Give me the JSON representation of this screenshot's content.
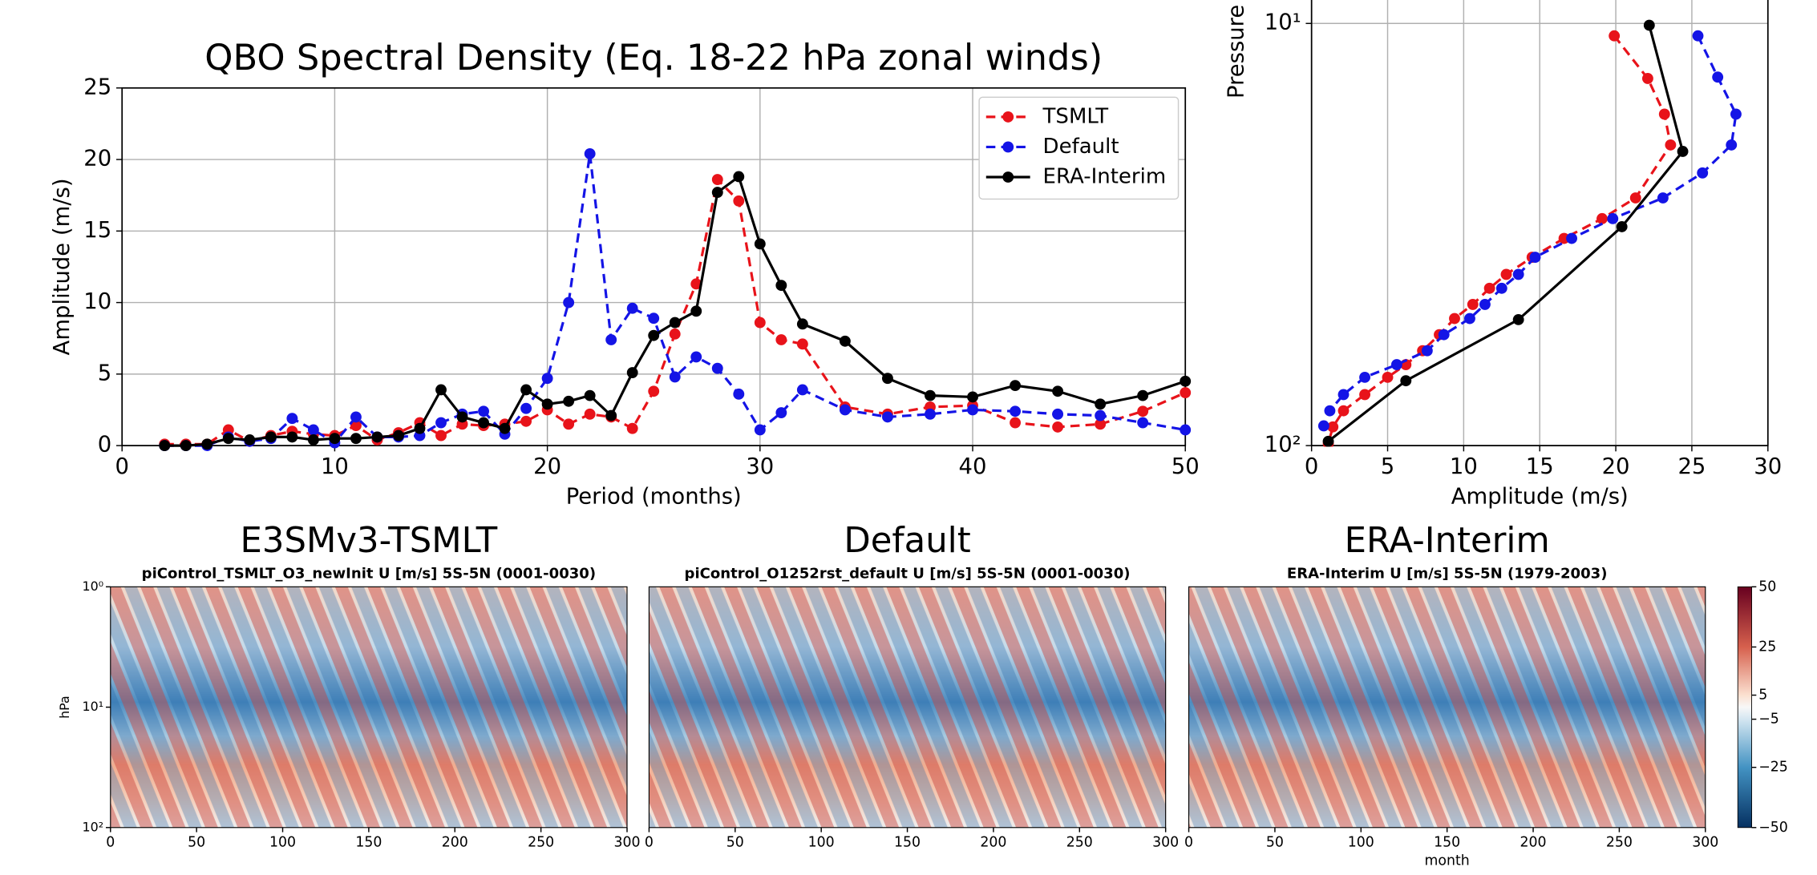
{
  "chart_data": [
    {
      "type": "line",
      "title": "QBO Spectral Density (Eq. 18-22 hPa zonal winds)",
      "xlabel": "Period (months)",
      "ylabel": "Amplitude (m/s)",
      "x": [
        2,
        3,
        4,
        5,
        6,
        7,
        8,
        9,
        10,
        11,
        12,
        13,
        14,
        15,
        16,
        17,
        18,
        19,
        20,
        21,
        22,
        23,
        24,
        25,
        26,
        27,
        28,
        29,
        30,
        31,
        32,
        34,
        36,
        38,
        40,
        42,
        44,
        46,
        48,
        50
      ],
      "series": [
        {
          "name": "TSMLT",
          "color": "#e8131a",
          "linestyle": "dashed",
          "values": [
            0.1,
            0.1,
            0.1,
            1.1,
            0.3,
            0.7,
            1.0,
            0.8,
            0.7,
            1.4,
            0.4,
            0.9,
            1.6,
            0.7,
            1.5,
            1.4,
            1.5,
            1.7,
            2.5,
            1.5,
            2.2,
            2.0,
            1.2,
            3.8,
            7.8,
            11.3,
            18.6,
            17.1,
            8.6,
            7.4,
            7.1,
            2.7,
            2.2,
            2.7,
            2.8,
            1.6,
            1.3,
            1.5,
            2.4,
            3.7
          ]
        },
        {
          "name": "Default",
          "color": "#1414e6",
          "linestyle": "dashed",
          "values": [
            0,
            0,
            0,
            0.6,
            0.3,
            0.5,
            1.9,
            1.1,
            0.2,
            2.0,
            0.6,
            0.6,
            0.7,
            1.6,
            2.2,
            2.4,
            0.8,
            2.6,
            4.7,
            10.0,
            20.4,
            7.4,
            9.6,
            8.9,
            4.8,
            6.2,
            5.4,
            3.6,
            1.1,
            2.3,
            3.9,
            2.5,
            2.0,
            2.2,
            2.5,
            2.4,
            2.2,
            2.1,
            1.6,
            1.1
          ]
        },
        {
          "name": "ERA-Interim",
          "color": "#000000",
          "linestyle": "solid",
          "values": [
            0,
            0,
            0.1,
            0.5,
            0.4,
            0.6,
            0.6,
            0.4,
            0.5,
            0.5,
            0.6,
            0.7,
            1.2,
            3.9,
            2.0,
            1.6,
            1.2,
            3.9,
            2.9,
            3.1,
            3.5,
            2.1,
            5.1,
            7.7,
            8.6,
            9.4,
            17.7,
            18.8,
            14.1,
            11.2,
            8.5,
            7.3,
            4.7,
            3.5,
            3.4,
            4.2,
            3.8,
            2.9,
            3.5,
            4.5
          ]
        }
      ],
      "xlim": [
        0,
        50
      ],
      "xticks": [
        0,
        10,
        20,
        30,
        40,
        50
      ],
      "ylim": [
        0,
        25
      ],
      "yticks": [
        0,
        5,
        10,
        15,
        20,
        25
      ],
      "grid": true,
      "legend": "upper right"
    },
    {
      "type": "profile",
      "xlabel": "Amplitude (m/s)",
      "ylabel": "Pressure",
      "log_y": true,
      "series": [
        {
          "color": "#e8131a",
          "linestyle": "dashed",
          "x": [
            19.9,
            22.1,
            23.2,
            23.6,
            21.3,
            19.1,
            16.6,
            14.5,
            12.8,
            11.7,
            10.6,
            9.4,
            8.4,
            7.3,
            6.2,
            5.0,
            3.5,
            2.1,
            1.4,
            1.1
          ],
          "values": [
            10.7,
            13.5,
            16.4,
            19.4,
            25.9,
            29.0,
            32.3,
            35.8,
            39.3,
            42.4,
            46.3,
            50.0,
            54.6,
            59.6,
            64.3,
            68.9,
            75.7,
            82.7,
            90.3,
            98.9
          ]
        },
        {
          "color": "#1414e6",
          "linestyle": "dashed",
          "x": [
            25.4,
            26.7,
            27.9,
            27.6,
            25.7,
            23.1,
            19.8,
            17.1,
            14.7,
            13.6,
            12.5,
            11.4,
            10.4,
            8.7,
            7.6,
            5.6,
            3.5,
            2.1,
            1.2,
            0.8
          ],
          "values": [
            10.7,
            13.4,
            16.4,
            19.4,
            22.6,
            25.9,
            29.0,
            32.3,
            35.8,
            39.3,
            42.4,
            46.3,
            50.0,
            54.6,
            59.6,
            64.3,
            68.9,
            75.7,
            82.7,
            89.8
          ]
        },
        {
          "color": "#000000",
          "linestyle": "solid",
          "x": [
            22.2,
            24.4,
            20.4,
            13.6,
            6.2,
            1.1
          ],
          "values": [
            10.1,
            20.1,
            30.3,
            50.3,
            70.2,
            97.7
          ]
        }
      ],
      "xlim": [
        0,
        30
      ],
      "xticks": [
        0,
        5,
        10,
        15,
        20,
        25,
        30
      ],
      "ylim": [
        100,
        8.8
      ],
      "yticks": [
        {
          "value": 10,
          "label": "10¹"
        },
        {
          "value": 100,
          "label": "10²"
        }
      ],
      "grid": true
    },
    {
      "type": "heatmap",
      "title": "E3SMv3-TSMLT",
      "subtitle": "piControl_TSMLT_O3_newInit U [m/s] 5S-5N (0001-0030)",
      "ylabel": "hPa",
      "log_y": true,
      "xlim": [
        0,
        300
      ],
      "xticks": [
        0,
        50,
        100,
        150,
        200,
        250,
        300
      ],
      "ylim": [
        100,
        1
      ],
      "yticks": [
        {
          "value": 1,
          "label": "10⁰"
        },
        {
          "value": 10,
          "label": "10¹"
        },
        {
          "value": 100,
          "label": "10²"
        }
      ]
    },
    {
      "type": "heatmap",
      "title": "Default",
      "subtitle": "piControl_O1252rst_default U [m/s] 5S-5N (0001-0030)",
      "xlim": [
        0,
        300
      ],
      "xticks": [
        0,
        50,
        100,
        150,
        200,
        250,
        300
      ]
    },
    {
      "type": "heatmap",
      "title": "ERA-Interim",
      "subtitle": "ERA-Interim U [m/s] 5S-5N (1979-2003)",
      "xlabel": "month",
      "xlim": [
        0,
        300
      ],
      "xticks": [
        0,
        50,
        100,
        150,
        200,
        250,
        300
      ]
    },
    {
      "type": "colorbar",
      "ylim": [
        -50,
        50
      ],
      "yticks": [
        50,
        25,
        5,
        {
          "value": -5,
          "label": "−5"
        },
        {
          "value": -25,
          "label": "−25"
        },
        {
          "value": -50,
          "label": "−50"
        }
      ]
    }
  ]
}
